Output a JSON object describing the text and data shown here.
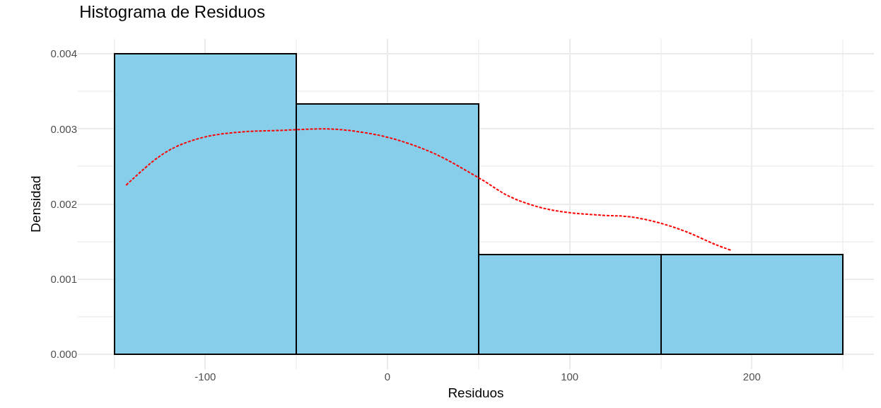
{
  "chart_data": {
    "type": "histogram",
    "title": "Histograma de Residuos",
    "xlabel": "Residuos",
    "ylabel": "Densidad",
    "bins": [
      -150,
      -50,
      50,
      150,
      250
    ],
    "values": [
      0.004,
      0.00333,
      0.00133,
      0.00133
    ],
    "color": "#87ceeb",
    "series": [
      {
        "type": "line",
        "color": "#ff0000",
        "line_style": "dashed",
        "x": [
          -143.5,
          -126,
          -114.5,
          -99,
          -80,
          -60,
          -33,
          -18,
          1.5,
          25,
          50,
          67,
          83,
          98,
          118,
          133,
          149,
          164,
          180,
          189
        ],
        "values": [
          0.00225,
          0.00262,
          0.00278,
          0.0029,
          0.00296,
          0.00298,
          0.003,
          0.00297,
          0.00288,
          0.00268,
          0.00235,
          0.0021,
          0.00196,
          0.00189,
          0.00185,
          0.00183,
          0.00175,
          0.00163,
          0.00146,
          0.00138
        ]
      }
    ],
    "xlim": [
      -170,
      267
    ],
    "xticks": [
      -100,
      0,
      100,
      200
    ],
    "ylim": [
      -0.0002,
      0.0042
    ],
    "yticks": [
      {
        "value": 0,
        "label": "0.000"
      },
      {
        "value": 0.001,
        "label": "0.001"
      },
      {
        "value": 0.002,
        "label": "0.002"
      },
      {
        "value": 0.003,
        "label": "0.003"
      },
      {
        "value": 0.004,
        "label": "0.004"
      }
    ],
    "grid": true
  }
}
